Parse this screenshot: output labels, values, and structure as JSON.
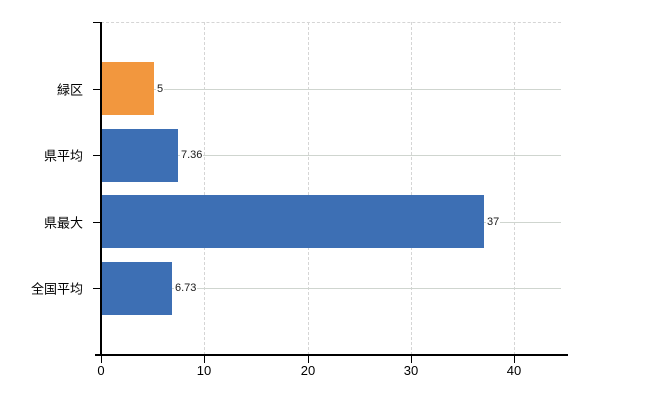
{
  "chart_data": {
    "type": "bar",
    "orientation": "horizontal",
    "title": "",
    "categories": [
      "緑区",
      "県平均",
      "県最大",
      "全国平均"
    ],
    "values": [
      5,
      7.36,
      37,
      6.73
    ],
    "value_labels": [
      "5",
      "7.36",
      "37",
      "6.73"
    ],
    "series": [
      {
        "name": "",
        "values": [
          5,
          7.36,
          37,
          6.73
        ]
      }
    ],
    "bar_colors": [
      "#F2973E",
      "#3D6FB4",
      "#3D6FB4",
      "#3D6FB4"
    ],
    "xticks": [
      {
        "value": 0,
        "label": "0"
      },
      {
        "value": 10,
        "label": "10"
      },
      {
        "value": 20,
        "label": "20"
      },
      {
        "value": 30,
        "label": "30"
      },
      {
        "value": 40,
        "label": "40"
      }
    ],
    "xlim": [
      0,
      44.5
    ],
    "xlabel": "",
    "ylabel": "",
    "legend": null,
    "grid": {
      "vertical_style": "dashed",
      "horizontal_style": "solid",
      "gridline_color": "#d5d5d5",
      "category_line_color": "#cfd5cf"
    },
    "axis_color": "#000000",
    "text_color": "#000000",
    "background_color": "#ffffff"
  }
}
